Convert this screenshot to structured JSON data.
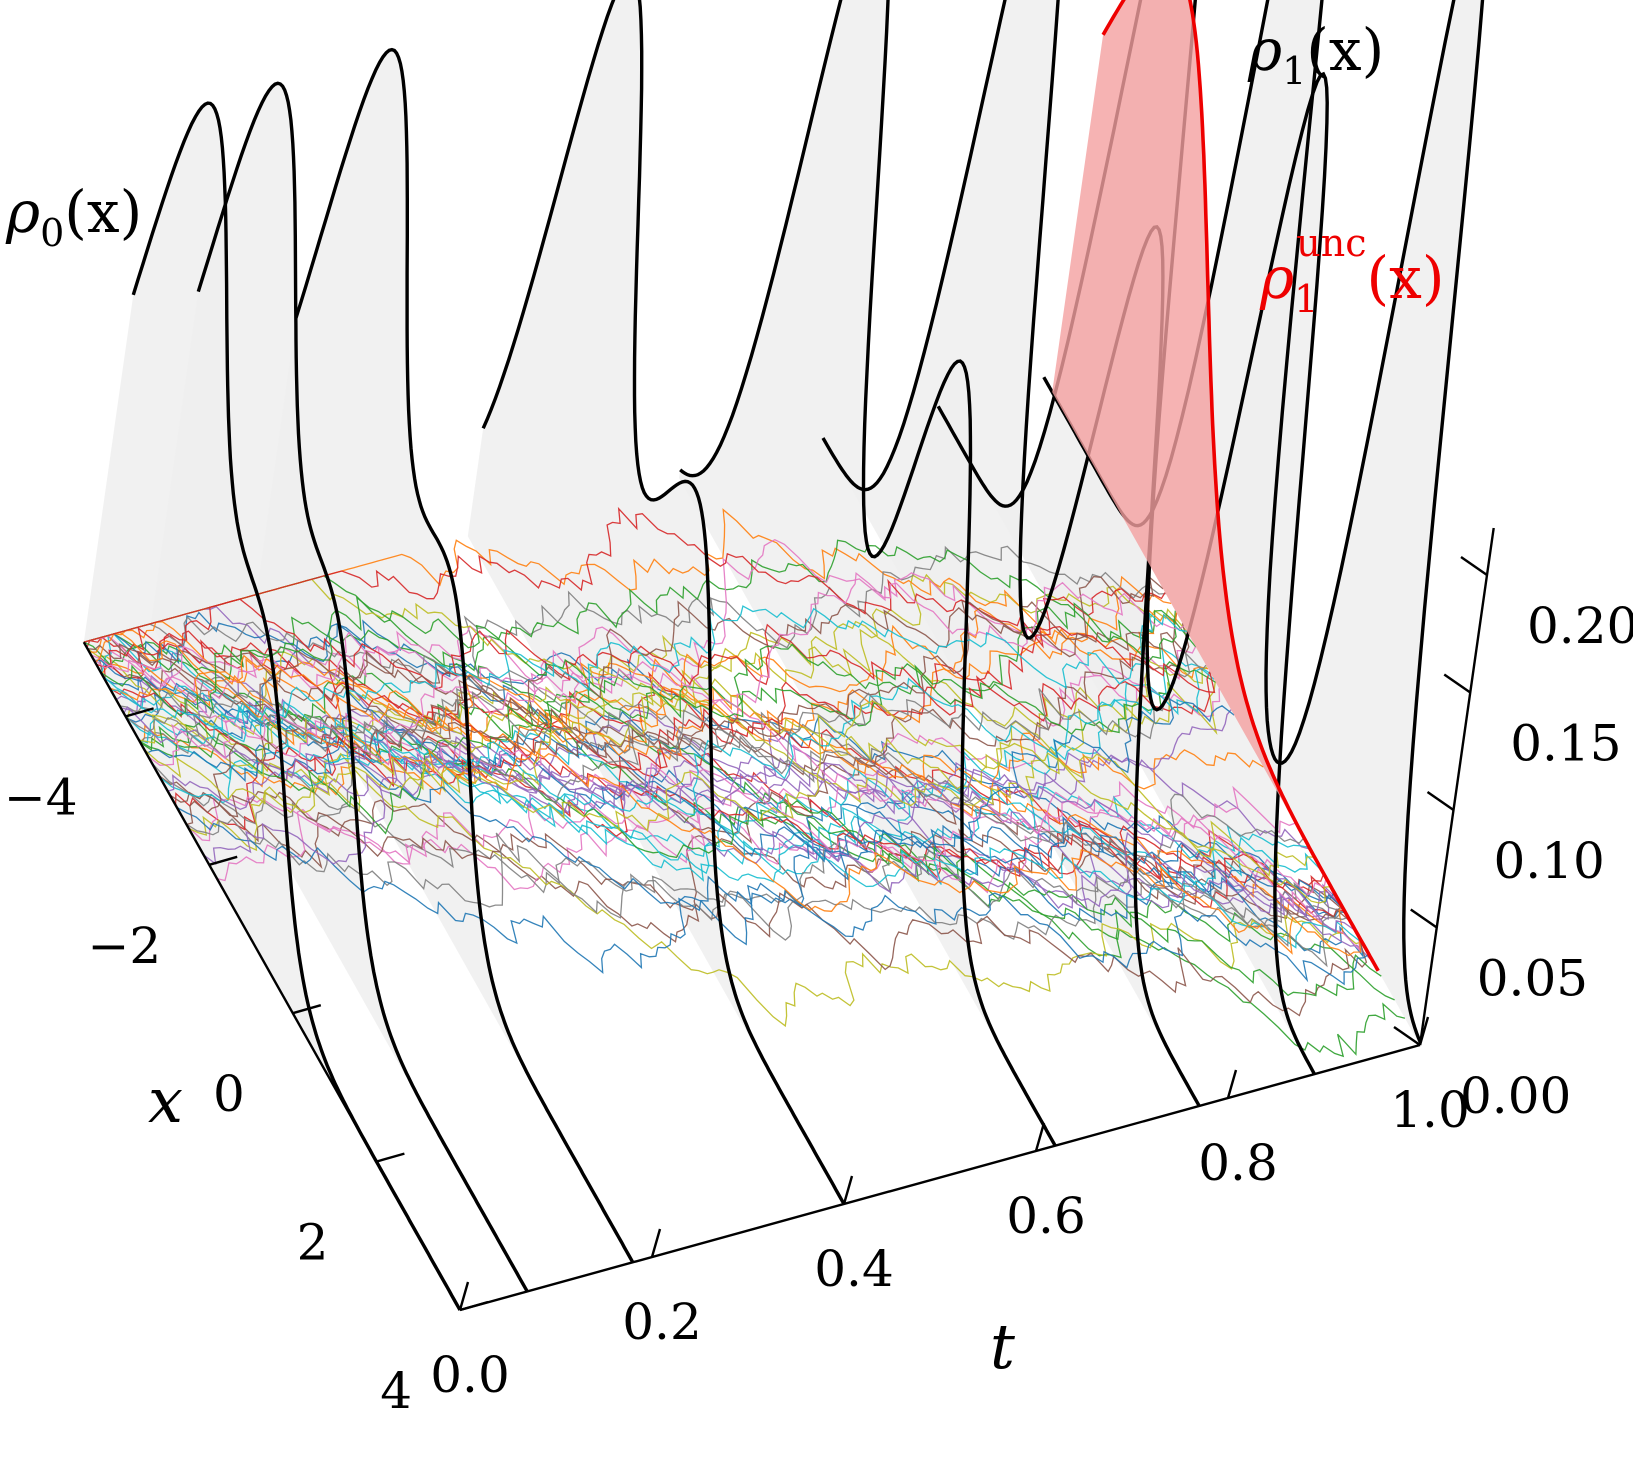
{
  "chart_data": {
    "type": "3d-line-density",
    "axes": {
      "t": {
        "label": "t",
        "range": [
          0.0,
          1.0
        ],
        "ticks": [
          0.0,
          0.2,
          0.4,
          0.6,
          0.8,
          1.0
        ],
        "tick_labels": [
          "0.0",
          "0.2",
          "0.4",
          "0.6",
          "0.8",
          "1.0"
        ]
      },
      "x": {
        "label": "x",
        "range": [
          -5,
          4
        ],
        "ticks": [
          -4,
          -2,
          0,
          2,
          4
        ],
        "tick_labels": [
          "−4",
          "−2",
          "0",
          "2",
          "4"
        ]
      },
      "density": {
        "label": "",
        "range": [
          0.0,
          0.22
        ],
        "ticks": [
          0.0,
          0.05,
          0.1,
          0.15,
          0.2
        ],
        "tick_labels": [
          "0.00",
          "0.05",
          "0.10",
          "0.15",
          "0.20"
        ]
      }
    },
    "density_slices": {
      "t_values": [
        0.0,
        0.07,
        0.18,
        0.4,
        0.62,
        0.77,
        0.89,
        1.0
      ],
      "color": "#000000",
      "fill": "#eeeeee"
    },
    "annotations": [
      {
        "id": "rho0",
        "base": "ρ",
        "sub": "0",
        "rest": "(x)",
        "color": "#000000"
      },
      {
        "id": "rho1",
        "base": "ρ",
        "sub": "1",
        "rest": "(x)",
        "color": "#000000"
      },
      {
        "id": "rho1unc",
        "base": "ρ",
        "sub": "1",
        "sup": "unc",
        "rest": "(x)",
        "color": "#ee0000"
      }
    ],
    "unconstrained_density": {
      "t": 1.0,
      "color": "#ee0000",
      "fill": "#f4a0a0"
    },
    "sample_paths": {
      "count": 60,
      "palette": [
        "#1f77b4",
        "#ff7f0e",
        "#2ca02c",
        "#d62728",
        "#9467bd",
        "#8c564b",
        "#e377c2",
        "#7f7f7f",
        "#bcbd22",
        "#17becf"
      ]
    },
    "grid": false,
    "legend": "none"
  }
}
